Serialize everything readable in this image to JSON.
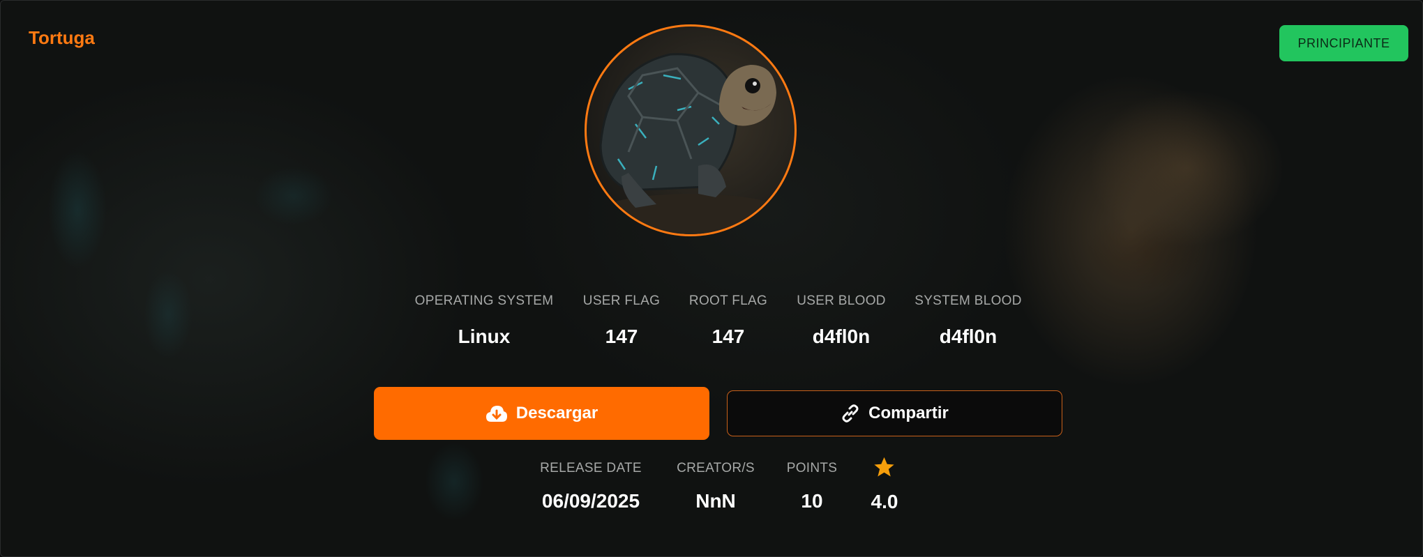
{
  "machine": {
    "name": "Tortuga",
    "difficulty": "PRINCIPIANTE"
  },
  "colors": {
    "accent": "#ff6b00",
    "difficulty": "#22c55e",
    "star": "#f59e0b"
  },
  "stats": [
    {
      "label": "OPERATING SYSTEM",
      "value": "Linux"
    },
    {
      "label": "USER FLAG",
      "value": "147"
    },
    {
      "label": "ROOT FLAG",
      "value": "147"
    },
    {
      "label": "USER BLOOD",
      "value": "d4fl0n"
    },
    {
      "label": "SYSTEM BLOOD",
      "value": "d4fl0n"
    }
  ],
  "actions": {
    "download": "Descargar",
    "share": "Compartir"
  },
  "details": [
    {
      "label": "RELEASE DATE",
      "value": "06/09/2025"
    },
    {
      "label": "CREATOR/S",
      "value": "NnN"
    },
    {
      "label": "POINTS",
      "value": "10"
    }
  ],
  "rating": {
    "icon": "star-icon",
    "value": "4.0"
  }
}
